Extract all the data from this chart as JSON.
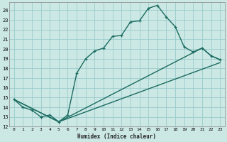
{
  "xlabel": "Humidex (Indice chaleur)",
  "bg_color": "#cce8e4",
  "grid_color": "#99cccc",
  "line_color": "#1a6b60",
  "xmin": -0.5,
  "xmax": 23.5,
  "ymin": 12,
  "ymax": 24.8,
  "yticks": [
    12,
    13,
    14,
    15,
    16,
    17,
    18,
    19,
    20,
    21,
    22,
    23,
    24
  ],
  "xticks": [
    0,
    1,
    2,
    3,
    4,
    5,
    6,
    7,
    8,
    9,
    10,
    11,
    12,
    13,
    14,
    15,
    16,
    17,
    18,
    19,
    20,
    21,
    22,
    23
  ],
  "curve_x": [
    0,
    1,
    2,
    3,
    4,
    5,
    6,
    7,
    8,
    9,
    10,
    11,
    12,
    13,
    14,
    15,
    16,
    17,
    18,
    19,
    20,
    21,
    22,
    23
  ],
  "curve_y": [
    14.8,
    14.0,
    13.7,
    13.0,
    13.2,
    12.5,
    13.2,
    17.5,
    19.0,
    19.8,
    20.1,
    21.3,
    21.4,
    22.8,
    22.9,
    24.2,
    24.5,
    23.3,
    22.3,
    20.2,
    19.7,
    20.1,
    19.3,
    18.9
  ],
  "line2_x": [
    0,
    5,
    23
  ],
  "line2_y": [
    14.8,
    12.5,
    18.6
  ],
  "line3_x": [
    0,
    5,
    21,
    22,
    23
  ],
  "line3_y": [
    14.8,
    12.5,
    20.1,
    19.3,
    18.9
  ],
  "linewidth": 1.0,
  "marker": "+"
}
